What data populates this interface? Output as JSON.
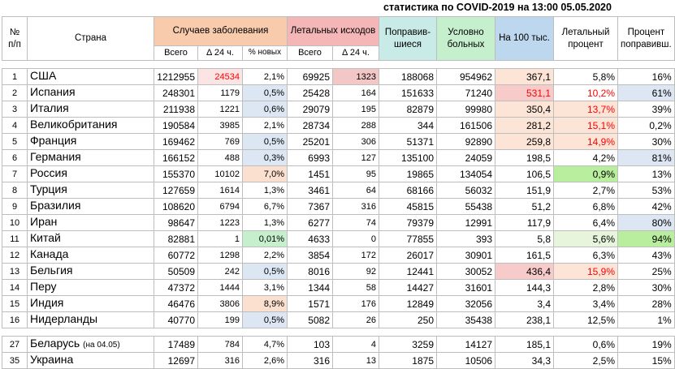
{
  "title": "статистика по COVID-2019 на 13:00 05.05.2020",
  "headers": {
    "num": "№ п/п",
    "country": "Страна",
    "cases": "Случаев заболевания",
    "deaths": "Летальных исходов",
    "recovered": "Поправив-шиеся",
    "active": "Условно больных",
    "per100k": "На 100 тыс.",
    "lethal": "Летальный процент",
    "recovery": "Процент поправивш.",
    "total": "Всего",
    "delta": "Δ 24 ч.",
    "new_pct": "% новых"
  },
  "colors": {
    "orange_header": "#f8cbad",
    "pink_header": "#f4b6b6",
    "teal_header": "#c9ebe7",
    "green_header": "#c6efce",
    "blue_header": "#bdd7ee",
    "new_cases_red": "#ff0000",
    "lethal_red": "#ff0000"
  },
  "rows": [
    {
      "num": "1",
      "country": "США",
      "note": "",
      "cases": "1212955",
      "cases_delta": "24534",
      "new_pct": "2,1%",
      "deaths": "69925",
      "deaths_delta": "1323",
      "recovered": "188068",
      "active": "954962",
      "per100k": "367,1",
      "lethal": "5,8%",
      "recovery": "16%"
    },
    {
      "num": "2",
      "country": "Испания",
      "note": "",
      "cases": "248301",
      "cases_delta": "1179",
      "new_pct": "0,5%",
      "deaths": "25428",
      "deaths_delta": "164",
      "recovered": "151633",
      "active": "71240",
      "per100k": "531,1",
      "lethal": "10,2%",
      "recovery": "61%"
    },
    {
      "num": "3",
      "country": "Италия",
      "note": "",
      "cases": "211938",
      "cases_delta": "1221",
      "new_pct": "0,6%",
      "deaths": "29079",
      "deaths_delta": "195",
      "recovered": "82879",
      "active": "99980",
      "per100k": "350,4",
      "lethal": "13,7%",
      "recovery": "39%"
    },
    {
      "num": "4",
      "country": "Великобритания",
      "note": "",
      "cases": "190584",
      "cases_delta": "3985",
      "new_pct": "2,1%",
      "deaths": "28734",
      "deaths_delta": "288",
      "recovered": "344",
      "active": "161506",
      "per100k": "281,2",
      "lethal": "15,1%",
      "recovery": "0,2%"
    },
    {
      "num": "5",
      "country": "Франция",
      "note": "",
      "cases": "169462",
      "cases_delta": "769",
      "new_pct": "0,5%",
      "deaths": "25201",
      "deaths_delta": "306",
      "recovered": "51371",
      "active": "92890",
      "per100k": "259,8",
      "lethal": "14,9%",
      "recovery": "30%"
    },
    {
      "num": "6",
      "country": "Германия",
      "note": "",
      "cases": "166152",
      "cases_delta": "488",
      "new_pct": "0,3%",
      "deaths": "6993",
      "deaths_delta": "127",
      "recovered": "135100",
      "active": "24059",
      "per100k": "198,5",
      "lethal": "4,2%",
      "recovery": "81%"
    },
    {
      "num": "7",
      "country": "Россия",
      "note": "",
      "cases": "155370",
      "cases_delta": "10102",
      "new_pct": "7,0%",
      "deaths": "1451",
      "deaths_delta": "95",
      "recovered": "19865",
      "active": "134054",
      "per100k": "106,5",
      "lethal": "0,9%",
      "recovery": "13%"
    },
    {
      "num": "8",
      "country": "Турция",
      "note": "",
      "cases": "127659",
      "cases_delta": "1614",
      "new_pct": "1,3%",
      "deaths": "3461",
      "deaths_delta": "64",
      "recovered": "68166",
      "active": "56032",
      "per100k": "151,9",
      "lethal": "2,7%",
      "recovery": "53%"
    },
    {
      "num": "9",
      "country": "Бразилия",
      "note": "",
      "cases": "108620",
      "cases_delta": "6794",
      "new_pct": "6,7%",
      "deaths": "7367",
      "deaths_delta": "316",
      "recovered": "45815",
      "active": "55438",
      "per100k": "51,2",
      "lethal": "6,8%",
      "recovery": "42%"
    },
    {
      "num": "10",
      "country": "Иран",
      "note": "",
      "cases": "98647",
      "cases_delta": "1223",
      "new_pct": "1,3%",
      "deaths": "6277",
      "deaths_delta": "74",
      "recovered": "79379",
      "active": "12991",
      "per100k": "117,9",
      "lethal": "6,4%",
      "recovery": "80%"
    },
    {
      "num": "11",
      "country": "Китай",
      "note": "",
      "cases": "82881",
      "cases_delta": "1",
      "new_pct": "0,01%",
      "deaths": "4633",
      "deaths_delta": "0",
      "recovered": "77855",
      "active": "393",
      "per100k": "5,8",
      "lethal": "5,6%",
      "recovery": "94%"
    },
    {
      "num": "12",
      "country": "Канада",
      "note": "",
      "cases": "60772",
      "cases_delta": "1298",
      "new_pct": "2,2%",
      "deaths": "3854",
      "deaths_delta": "172",
      "recovered": "26017",
      "active": "30901",
      "per100k": "161,5",
      "lethal": "6,3%",
      "recovery": "43%"
    },
    {
      "num": "13",
      "country": "Бельгия",
      "note": "",
      "cases": "50509",
      "cases_delta": "242",
      "new_pct": "0,5%",
      "deaths": "8016",
      "deaths_delta": "92",
      "recovered": "12441",
      "active": "30052",
      "per100k": "436,4",
      "lethal": "15,9%",
      "recovery": "25%"
    },
    {
      "num": "14",
      "country": "Перу",
      "note": "",
      "cases": "47372",
      "cases_delta": "1444",
      "new_pct": "3,1%",
      "deaths": "1344",
      "deaths_delta": "58",
      "recovered": "14427",
      "active": "31601",
      "per100k": "144,3",
      "lethal": "2,8%",
      "recovery": "30%"
    },
    {
      "num": "15",
      "country": "Индия",
      "note": "",
      "cases": "46476",
      "cases_delta": "3806",
      "new_pct": "8,9%",
      "deaths": "1571",
      "deaths_delta": "176",
      "recovered": "12849",
      "active": "32056",
      "per100k": "3,4",
      "lethal": "3,4%",
      "recovery": "28%"
    },
    {
      "num": "16",
      "country": "Нидерланды",
      "note": "",
      "cases": "40770",
      "cases_delta": "199",
      "new_pct": "0,5%",
      "deaths": "5082",
      "deaths_delta": "26",
      "recovered": "250",
      "active": "35438",
      "per100k": "238,1",
      "lethal": "12,5%",
      "recovery": "1%"
    }
  ],
  "extra_rows": [
    {
      "num": "27",
      "country": "Беларусь",
      "note": "(на 04.05)",
      "cases": "17489",
      "cases_delta": "784",
      "new_pct": "4,7%",
      "deaths": "103",
      "deaths_delta": "4",
      "recovered": "3259",
      "active": "14127",
      "per100k": "185,1",
      "lethal": "0,6%",
      "recovery": "19%"
    },
    {
      "num": "35",
      "country": "Украина",
      "note": "",
      "cases": "12697",
      "cases_delta": "316",
      "new_pct": "2,6%",
      "deaths": "316",
      "deaths_delta": "13",
      "recovered": "1875",
      "active": "10506",
      "per100k": "34,3",
      "lethal": "2,5%",
      "recovery": "15%"
    }
  ]
}
